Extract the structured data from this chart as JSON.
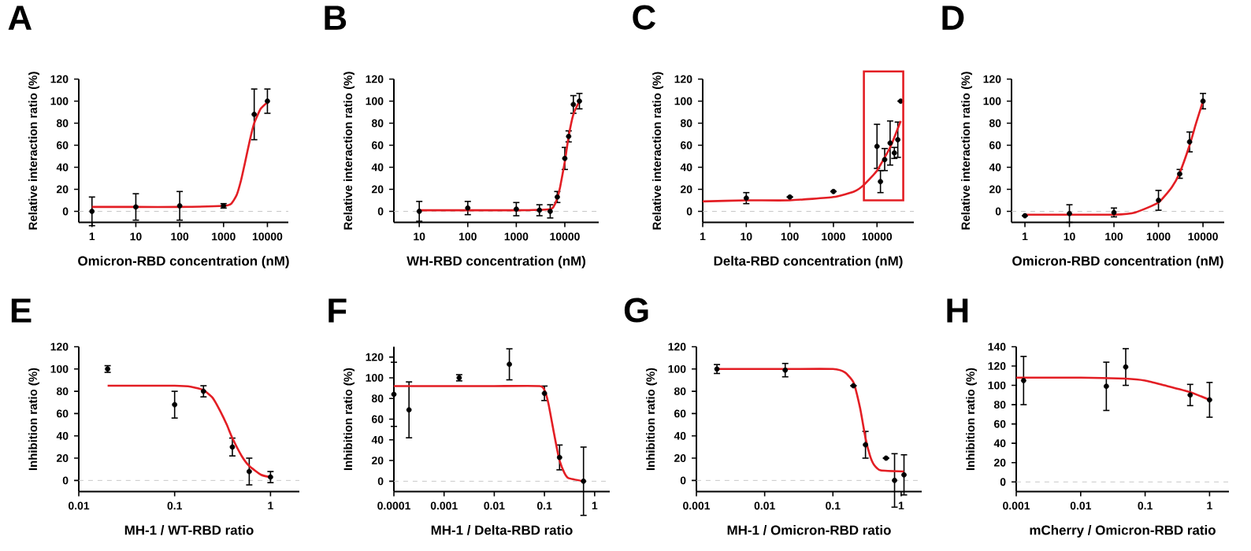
{
  "chart_data": [
    {
      "type": "scatter",
      "title": "A",
      "xlabel": "Omicron-RBD concentration (nM)",
      "ylabel": "Relative interaction ratio (%)",
      "log": "x",
      "xlim": [
        0.5,
        30000
      ],
      "ylim": [
        -10,
        120
      ],
      "xticks": [
        1,
        10,
        100,
        1000,
        10000
      ],
      "yticks": [
        0,
        20,
        40,
        60,
        80,
        100,
        120
      ],
      "ref_lines": [
        {
          "axis": "y",
          "value": 0,
          "color": "#c8c8c8",
          "line_style": "dashed"
        }
      ],
      "series": [
        {
          "marker": "circle",
          "color": "#000000",
          "x": [
            1,
            10,
            100,
            1000,
            5000,
            10000
          ],
          "values": [
            0,
            4,
            5,
            5,
            88,
            100
          ],
          "errors": [
            13,
            12,
            13,
            2,
            23,
            11
          ]
        },
        {
          "type": "line",
          "marker": "none",
          "color": "#e31e24",
          "x": [
            1,
            10,
            100,
            1000,
            1500,
            2000,
            2500,
            3000,
            4000,
            5000,
            7000,
            10000
          ],
          "values": [
            4,
            4,
            4,
            5,
            7,
            15,
            28,
            42,
            65,
            80,
            93,
            99
          ]
        }
      ]
    },
    {
      "type": "scatter",
      "title": "B",
      "xlabel": "WH-RBD concentration (nM)",
      "ylabel": "Relative interaction ratio (%)",
      "log": "x",
      "xlim": [
        3,
        50000
      ],
      "ylim": [
        -10,
        120
      ],
      "xticks": [
        10,
        100,
        1000,
        10000
      ],
      "yticks": [
        0,
        20,
        40,
        60,
        80,
        100,
        120
      ],
      "ref_lines": [
        {
          "axis": "y",
          "value": 0,
          "color": "#c8c8c8",
          "line_style": "dashed"
        }
      ],
      "series": [
        {
          "marker": "circle",
          "color": "#000000",
          "x": [
            10,
            100,
            1000,
            3000,
            5000,
            7000,
            10000,
            12000,
            15000,
            20000
          ],
          "values": [
            0,
            3,
            2,
            1,
            0,
            13,
            48,
            68,
            97,
            100
          ],
          "errors": [
            9,
            6,
            6,
            5,
            6,
            5,
            10,
            5,
            8,
            7
          ]
        },
        {
          "type": "line",
          "marker": "none",
          "color": "#e31e24",
          "x": [
            10,
            100,
            1000,
            5000,
            6000,
            7000,
            8000,
            10000,
            12000,
            15000,
            20000
          ],
          "values": [
            1,
            1,
            1,
            2,
            5,
            12,
            22,
            45,
            68,
            88,
            100
          ]
        }
      ]
    },
    {
      "type": "scatter",
      "title": "C",
      "xlabel": "Delta-RBD concentration (nM)",
      "ylabel": "Relative interaction ratio (%)",
      "log": "x",
      "xlim": [
        1,
        70000
      ],
      "ylim": [
        -10,
        120
      ],
      "xticks": [
        1,
        10,
        100,
        1000,
        10000
      ],
      "yticks": [
        0,
        20,
        40,
        60,
        80,
        100,
        120
      ],
      "ref_lines": [
        {
          "axis": "y",
          "value": 0,
          "color": "#c8c8c8",
          "line_style": "dashed"
        }
      ],
      "series": [
        {
          "marker": "circle",
          "color": "#000000",
          "x": [
            10,
            100,
            1000,
            10000,
            12000,
            15000,
            20000,
            25000,
            30000,
            35000
          ],
          "values": [
            12,
            13,
            18,
            59,
            27,
            47,
            62,
            53,
            65,
            100
          ],
          "errors": [
            5,
            null,
            null,
            20,
            10,
            10,
            20,
            5,
            16,
            null
          ]
        },
        {
          "type": "line",
          "marker": "none",
          "color": "#e31e24",
          "x": [
            1,
            10,
            100,
            1000,
            3000,
            5000,
            10000,
            20000,
            35000
          ],
          "values": [
            9,
            10,
            10,
            13,
            18,
            24,
            37,
            58,
            82
          ]
        }
      ]
    },
    {
      "type": "scatter",
      "title": "D",
      "xlabel": "Omicron-RBD concentration (nM)",
      "ylabel": "Relative interaction ratio (%)",
      "log": "x",
      "xlim": [
        0.5,
        30000
      ],
      "ylim": [
        -10,
        120
      ],
      "xticks": [
        1,
        10,
        100,
        1000,
        10000
      ],
      "yticks": [
        0,
        20,
        40,
        60,
        80,
        100,
        120
      ],
      "ref_lines": [
        {
          "axis": "y",
          "value": 0,
          "color": "#c8c8c8",
          "line_style": "dashed"
        }
      ],
      "series": [
        {
          "marker": "circle",
          "color": "#000000",
          "x": [
            1,
            10,
            100,
            1000,
            3000,
            5000,
            10000
          ],
          "values": [
            -4,
            -2,
            -1,
            10,
            34,
            63,
            100
          ],
          "errors": [
            null,
            8,
            4,
            9,
            4,
            9,
            7
          ]
        },
        {
          "type": "line",
          "marker": "none",
          "color": "#e31e24",
          "x": [
            1,
            10,
            100,
            300,
            1000,
            2000,
            3000,
            5000,
            7000,
            10000
          ],
          "values": [
            -3,
            -3,
            -3,
            -1,
            8,
            22,
            35,
            60,
            80,
            100
          ]
        }
      ]
    },
    {
      "type": "scatter",
      "title": "E",
      "xlabel": "MH-1 / WT-RBD ratio",
      "ylabel": "Inhibition ratio (%)",
      "log": "x",
      "xlim": [
        0.01,
        2
      ],
      "ylim": [
        -10,
        120
      ],
      "xticks": [
        0.01,
        0.1,
        1
      ],
      "yticks": [
        0,
        20,
        40,
        60,
        80,
        100,
        120
      ],
      "ref_lines": [
        {
          "axis": "y",
          "value": 0,
          "color": "#c8c8c8",
          "line_style": "dashed"
        }
      ],
      "series": [
        {
          "marker": "circle",
          "color": "#000000",
          "x": [
            0.02,
            0.1,
            0.2,
            0.4,
            0.6,
            1
          ],
          "values": [
            100,
            68,
            80,
            30,
            8,
            3
          ],
          "errors": [
            3,
            12,
            5,
            8,
            12,
            5
          ]
        },
        {
          "type": "line",
          "marker": "none",
          "color": "#e31e24",
          "x": [
            0.02,
            0.1,
            0.15,
            0.2,
            0.25,
            0.3,
            0.35,
            0.4,
            0.5,
            0.6,
            0.8,
            1
          ],
          "values": [
            85,
            85,
            84,
            81,
            74,
            62,
            50,
            38,
            22,
            13,
            5,
            3
          ]
        }
      ]
    },
    {
      "type": "scatter",
      "title": "F",
      "xlabel": "MH-1 / Delta-RBD ratio",
      "ylabel": "Inhibition ratio (%)",
      "log": "x",
      "xlim": [
        0.0001,
        2
      ],
      "ylim": [
        -10,
        130
      ],
      "xticks": [
        0.0001,
        0.001,
        0.01,
        0.1,
        1
      ],
      "yticks": [
        0,
        20,
        40,
        60,
        80,
        100,
        120
      ],
      "ref_lines": [
        {
          "axis": "y",
          "value": 0,
          "color": "#c8c8c8",
          "line_style": "dashed"
        }
      ],
      "series": [
        {
          "marker": "circle",
          "color": "#000000",
          "x": [
            0.0001,
            0.0002,
            0.002,
            0.02,
            0.1,
            0.2,
            0.6
          ],
          "values": [
            84,
            69,
            100,
            113,
            85,
            23,
            0
          ],
          "errors": [
            31,
            27,
            3,
            15,
            7,
            12,
            33
          ]
        },
        {
          "type": "line",
          "marker": "none",
          "color": "#e31e24",
          "x": [
            0.0001,
            0.001,
            0.01,
            0.08,
            0.1,
            0.12,
            0.15,
            0.18,
            0.2,
            0.25,
            0.3,
            0.6
          ],
          "values": [
            92,
            92,
            92,
            92,
            88,
            75,
            50,
            30,
            20,
            8,
            3,
            0
          ]
        }
      ]
    },
    {
      "type": "scatter",
      "title": "G",
      "xlabel": "MH-1 / Omicron-RBD ratio",
      "ylabel": "Inhibition ratio (%)",
      "log": "x",
      "xlim": [
        0.001,
        2
      ],
      "ylim": [
        -10,
        120
      ],
      "xticks": [
        0.001,
        0.01,
        0.1,
        1
      ],
      "yticks": [
        0,
        20,
        40,
        60,
        80,
        100,
        120
      ],
      "ref_lines": [
        {
          "axis": "y",
          "value": 0,
          "color": "#c8c8c8",
          "line_style": "dashed"
        }
      ],
      "series": [
        {
          "marker": "circle",
          "color": "#000000",
          "x": [
            0.002,
            0.02,
            0.2,
            0.3,
            0.6,
            0.8,
            1.1
          ],
          "values": [
            100,
            99,
            85,
            32,
            20,
            0,
            5
          ],
          "errors": [
            4,
            6,
            null,
            12,
            null,
            24,
            18
          ]
        },
        {
          "type": "line",
          "marker": "none",
          "color": "#e31e24",
          "x": [
            0.002,
            0.02,
            0.1,
            0.15,
            0.2,
            0.25,
            0.3,
            0.35,
            0.4,
            0.5,
            1.1
          ],
          "values": [
            100,
            100,
            100,
            97,
            88,
            65,
            38,
            22,
            14,
            9,
            8
          ]
        }
      ]
    },
    {
      "type": "scatter",
      "title": "H",
      "xlabel": "mCherry / Omicron-RBD ratio",
      "ylabel": "Inhibition ratio (%)",
      "log": "x",
      "xlim": [
        0.001,
        2
      ],
      "ylim": [
        -10,
        140
      ],
      "xticks": [
        0.001,
        0.01,
        0.1,
        1
      ],
      "yticks": [
        0,
        20,
        40,
        60,
        80,
        100,
        120,
        140
      ],
      "ref_lines": [
        {
          "axis": "y",
          "value": 0,
          "color": "#c8c8c8",
          "line_style": "dashed"
        }
      ],
      "series": [
        {
          "marker": "circle",
          "color": "#000000",
          "x": [
            0.0013,
            0.025,
            0.05,
            0.5,
            1
          ],
          "values": [
            105,
            99,
            119,
            90,
            85
          ],
          "errors": [
            25,
            25,
            19,
            11,
            18
          ]
        },
        {
          "type": "line",
          "marker": "none",
          "color": "#e31e24",
          "x": [
            0.001,
            0.01,
            0.05,
            0.1,
            0.2,
            0.5,
            1
          ],
          "values": [
            108,
            108,
            107,
            105,
            100,
            93,
            85
          ]
        }
      ]
    }
  ]
}
